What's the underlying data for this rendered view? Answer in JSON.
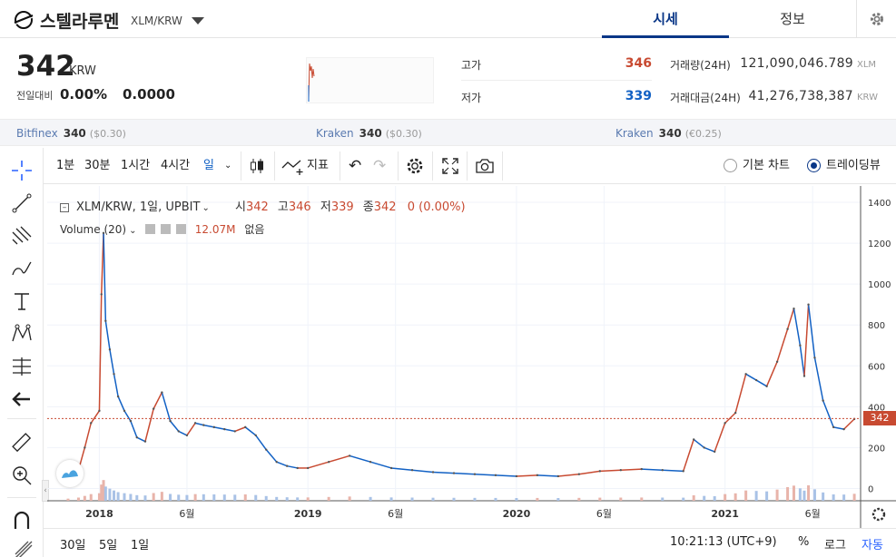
{
  "header": {
    "coin_name": "스텔라루멘",
    "coin_pair": "XLM/KRW",
    "tabs": [
      {
        "label": "시세"
      },
      {
        "label": "정보"
      }
    ]
  },
  "summary": {
    "price": "342",
    "price_unit": "KRW",
    "change_label": "전일대비",
    "change_rate": "0.00%",
    "change_price": "0.0000",
    "high_label": "고가",
    "high_value": "346",
    "low_label": "저가",
    "low_value": "339",
    "volume_label": "거래량(24H)",
    "volume_value": "121,090,046.789",
    "volume_unit": "XLM",
    "amount_label": "거래대금(24H)",
    "amount_value": "41,276,738,387",
    "amount_unit": "KRW"
  },
  "exchanges": [
    {
      "name": "Bitfinex",
      "price": "340",
      "sub": "($0.30)"
    },
    {
      "name": "Kraken",
      "price": "340",
      "sub": "($0.30)"
    },
    {
      "name": "Kraken",
      "price": "340",
      "sub": "(€0.25)"
    }
  ],
  "toolbar": {
    "intervals": [
      "1분",
      "30분",
      "1시간",
      "4시간",
      "일"
    ],
    "indicators_label": "지표",
    "chart_mode_basic": "기본 차트",
    "chart_mode_tv": "트레이딩뷰",
    "selected_mode": "트레이딩뷰"
  },
  "legend": {
    "symbol": "XLM/KRW, 1일, UPBIT",
    "open_label": "시",
    "open": "342",
    "high_label": "고",
    "high": "346",
    "low_label": "저",
    "low": "339",
    "close_label": "종",
    "close": "342",
    "change": "0 (0.00%)",
    "volume_label": "Volume (20)",
    "volume_value": "12.07M",
    "volume_extra": "없음"
  },
  "colors": {
    "up": "#c84a31",
    "down": "#1261c4",
    "accent": "#093687"
  },
  "bottom": {
    "ranges": [
      "30일",
      "5일",
      "1일"
    ],
    "time": "10:21:13 (UTC+9)",
    "percent": "%",
    "log": "로그",
    "auto": "자동"
  },
  "chart_data": {
    "type": "line",
    "title": "XLM/KRW, 1일, UPBIT",
    "yticks": [
      0,
      200,
      400,
      600,
      800,
      1000,
      1200,
      1400
    ],
    "ylim": [
      -60,
      1480
    ],
    "xlim": [
      2017.75,
      2021.65
    ],
    "xticks": [
      {
        "x": 2018.0,
        "label": "2018"
      },
      {
        "x": 2018.42,
        "label": "6월"
      },
      {
        "x": 2019.0,
        "label": "2019"
      },
      {
        "x": 2019.42,
        "label": "6월"
      },
      {
        "x": 2020.0,
        "label": "2020"
      },
      {
        "x": 2020.42,
        "label": "6월"
      },
      {
        "x": 2021.0,
        "label": "2021"
      },
      {
        "x": 2021.42,
        "label": "6월"
      }
    ],
    "current_price": 342,
    "series": [
      {
        "x": [
          2017.85,
          2017.9,
          2017.93,
          2017.96,
          2018.0,
          2018.01,
          2018.02,
          2018.03,
          2018.05,
          2018.07,
          2018.09,
          2018.12,
          2018.15,
          2018.18,
          2018.22,
          2018.26,
          2018.3,
          2018.34,
          2018.38,
          2018.42,
          2018.46,
          2018.5,
          2018.55,
          2018.6,
          2018.65,
          2018.7,
          2018.75,
          2018.8,
          2018.85,
          2018.9,
          2018.95,
          2019.0,
          2019.1,
          2019.2,
          2019.3,
          2019.4,
          2019.5,
          2019.6,
          2019.7,
          2019.8,
          2019.9,
          2020.0,
          2020.1,
          2020.2,
          2020.3,
          2020.4,
          2020.5,
          2020.6,
          2020.7,
          2020.8,
          2020.85,
          2020.9,
          2020.95,
          2021.0,
          2021.05,
          2021.1,
          2021.15,
          2021.2,
          2021.25,
          2021.3,
          2021.33,
          2021.36,
          2021.38,
          2021.4,
          2021.43,
          2021.47,
          2021.52,
          2021.57,
          2021.62
        ],
        "values": [
          20,
          90,
          200,
          320,
          380,
          950,
          1250,
          820,
          680,
          560,
          450,
          380,
          330,
          250,
          230,
          390,
          470,
          330,
          280,
          260,
          320,
          310,
          300,
          290,
          280,
          300,
          260,
          190,
          130,
          110,
          100,
          100,
          130,
          160,
          130,
          100,
          90,
          80,
          75,
          70,
          65,
          60,
          65,
          60,
          70,
          85,
          90,
          95,
          90,
          85,
          240,
          200,
          180,
          320,
          370,
          560,
          530,
          500,
          620,
          780,
          880,
          700,
          550,
          900,
          640,
          430,
          300,
          290,
          340
        ]
      }
    ]
  }
}
